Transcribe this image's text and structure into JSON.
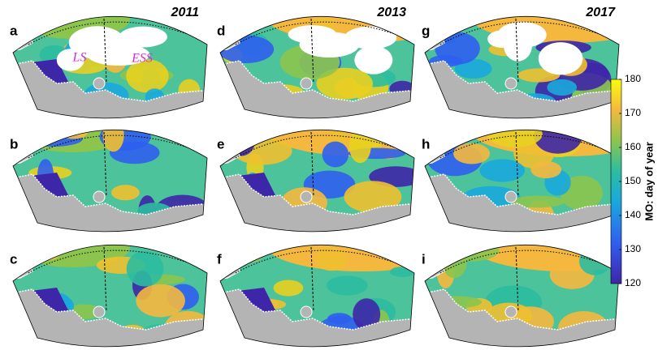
{
  "panels": [
    "a",
    "b",
    "c",
    "d",
    "e",
    "f",
    "g",
    "h",
    "i"
  ],
  "years": [
    "2011",
    "2013",
    "2017"
  ],
  "annotations": [
    "LS",
    "ESS"
  ],
  "colorbar": {
    "label": "MO: day of year",
    "lim": [
      120,
      180
    ],
    "ticks": [
      120,
      130,
      140,
      150,
      160,
      170,
      180
    ]
  }
}
